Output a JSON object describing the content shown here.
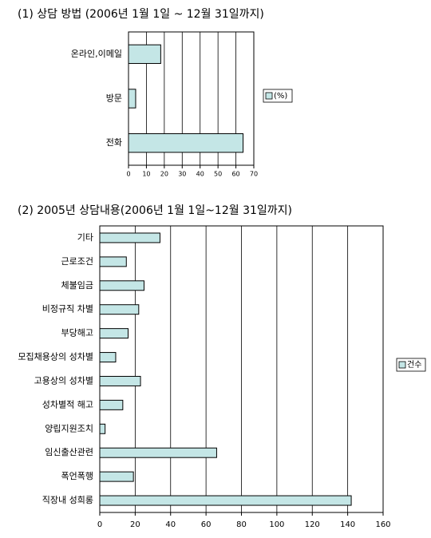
{
  "chart_data": [
    {
      "type": "bar",
      "orientation": "horizontal",
      "title": "(1) 상담 방법 (2006년 1월 1일 ~ 12월 31일까지)",
      "categories": [
        "온라인,이메일",
        "방문",
        "전화"
      ],
      "series": [
        {
          "name": "(%)",
          "color": "#c4e6e6",
          "values": [
            18,
            4,
            64
          ]
        }
      ],
      "xlim": [
        0,
        70
      ],
      "xticks": [
        0,
        10,
        20,
        30,
        40,
        50,
        60,
        70
      ],
      "grid": true,
      "legend": "right"
    },
    {
      "type": "bar",
      "orientation": "horizontal",
      "title": "(2) 2005년 상담내용(2006년 1월 1일~12월 31일까지)",
      "categories": [
        "기타",
        "근로조건",
        "체불임금",
        "비정규직 차별",
        "부당해고",
        "모집채용상의 성차별",
        "고용상의 성차별",
        "성차별적 해고",
        "양립지원조치",
        "임신출산관련",
        "폭언폭행",
        "직장내 성희롱"
      ],
      "series": [
        {
          "name": "건수",
          "color": "#c4e6e6",
          "values": [
            34,
            15,
            25,
            22,
            16,
            9,
            23,
            13,
            3,
            66,
            19,
            142
          ]
        }
      ],
      "xlim": [
        0,
        160
      ],
      "xticks": [
        0,
        20,
        40,
        60,
        80,
        100,
        120,
        140,
        160
      ],
      "grid": true,
      "legend": "right"
    }
  ]
}
